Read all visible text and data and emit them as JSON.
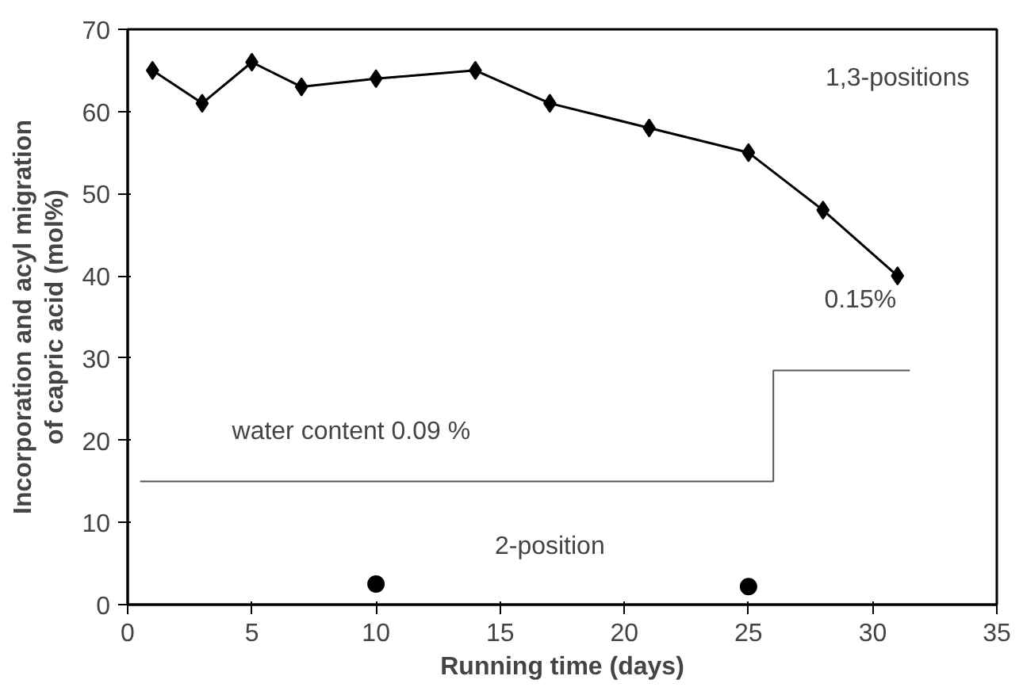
{
  "chart_data": {
    "type": "line",
    "xlabel": "Running time (days)",
    "ylabel": "Incorporation and acyl migration\nof capric acid (mol%)",
    "xlim": [
      0,
      35
    ],
    "ylim": [
      0,
      70
    ],
    "xticks": [
      0,
      5,
      10,
      15,
      20,
      25,
      30,
      35
    ],
    "yticks": [
      0,
      10,
      20,
      30,
      40,
      50,
      60,
      70
    ],
    "grid": false,
    "series": [
      {
        "marker": "diamond",
        "color": "#000000",
        "x": [
          1,
          3,
          5,
          7,
          10,
          14,
          17,
          21,
          25,
          28,
          31
        ],
        "values": [
          65,
          61,
          66,
          63,
          64,
          65,
          61,
          58,
          55,
          48,
          40
        ]
      },
      {
        "type": "scatter",
        "marker": "circle",
        "color": "#000000",
        "x": [
          10,
          25
        ],
        "values": [
          2.5,
          2.2
        ]
      },
      {
        "type": "step",
        "marker": "none",
        "color": "#555555",
        "x": [
          0.5,
          26,
          31.5
        ],
        "values": [
          15,
          28.5,
          28.5
        ]
      }
    ],
    "annotations": [
      "1,3-positions",
      "0.15%",
      "water content 0.09 %",
      "2-position"
    ]
  }
}
